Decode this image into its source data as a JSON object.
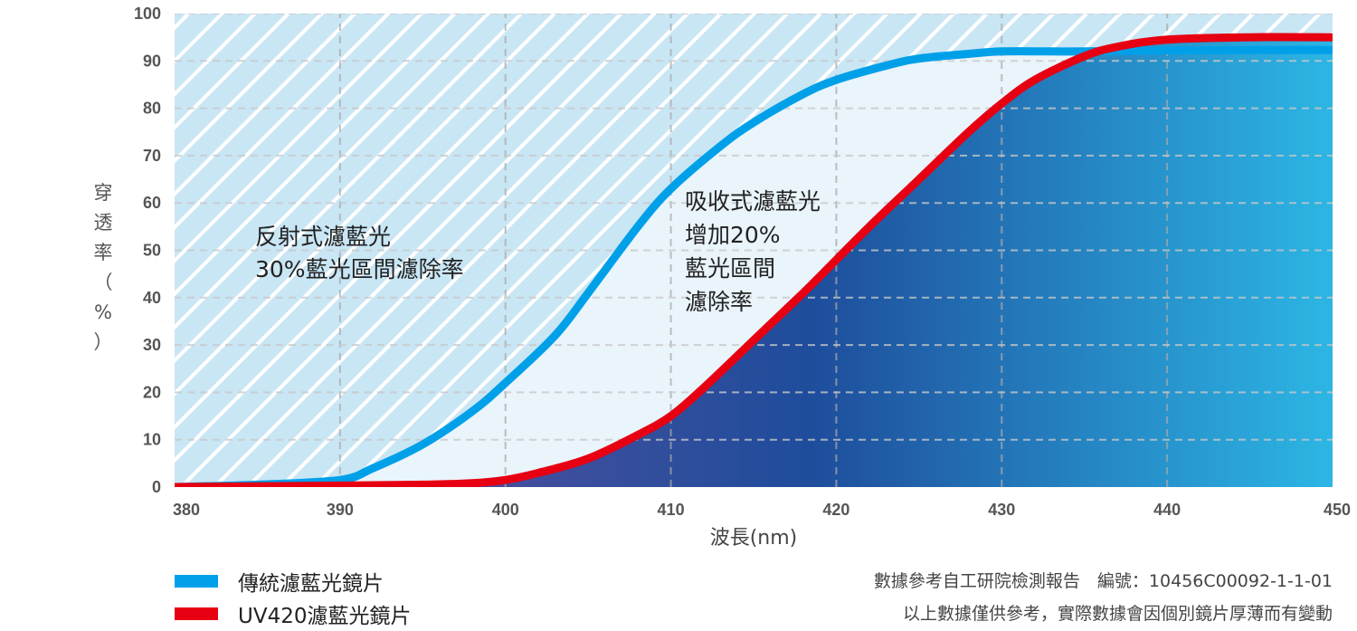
{
  "chart_data": {
    "type": "line",
    "xlabel": "波長(nm)",
    "ylabel": "穿透率（%）",
    "xlim": [
      380,
      450
    ],
    "ylim": [
      0,
      100
    ],
    "x_ticks": [
      380,
      390,
      400,
      410,
      420,
      430,
      440,
      450
    ],
    "y_ticks": [
      0,
      10,
      20,
      30,
      40,
      50,
      60,
      70,
      80,
      90,
      100
    ],
    "grid": true,
    "legend_position": "bottom-left",
    "series": [
      {
        "name": "傳統濾藍光鏡片",
        "color": "#00a0e9",
        "x": [
          380,
          385,
          390,
          392,
          395,
          398,
          400,
          403,
          405,
          408,
          410,
          413,
          415,
          418,
          420,
          423,
          425,
          428,
          430,
          433,
          435,
          440,
          445,
          450
        ],
        "y": [
          0,
          0.5,
          1.5,
          4,
          9,
          16,
          22,
          32,
          41,
          55,
          63,
          72,
          77,
          83,
          86,
          89,
          90.5,
          91.5,
          92,
          92,
          92,
          92.2,
          92.3,
          92.3
        ]
      },
      {
        "name": "UV420濾藍光鏡片",
        "color": "#e60012",
        "x": [
          380,
          390,
          395,
          398,
          400,
          402,
          405,
          408,
          410,
          412,
          415,
          418,
          420,
          422,
          425,
          428,
          430,
          432,
          435,
          437,
          440,
          445,
          450
        ],
        "y": [
          0,
          0.3,
          0.5,
          0.8,
          1.5,
          3,
          6,
          11,
          15,
          21,
          31,
          41,
          48,
          55,
          65,
          75,
          81,
          86,
          91,
          93,
          94.5,
          95,
          95
        ]
      }
    ],
    "annotations": [
      {
        "lines": [
          "反射式濾藍光",
          "30%藍光區間濾除率"
        ]
      },
      {
        "lines": [
          "吸收式濾藍光",
          "增加20%",
          "藍光區間",
          "濾除率"
        ]
      }
    ],
    "colors": {
      "hatch_background": "#c9e6f5",
      "hatch_stripe": "#ffffff",
      "between_fill": "#e9f4fb",
      "gradient_start": "#6b4f9e",
      "gradient_mid": "#1e4d9c",
      "gradient_end": "#2cb6e4"
    }
  },
  "legend": [
    {
      "label": "傳統濾藍光鏡片",
      "color": "#00a0e9"
    },
    {
      "label": "UV420濾藍光鏡片",
      "color": "#e60012"
    }
  ],
  "notes": {
    "line1": "數據參考自工研院檢測報告　編號：10456C00092-1-1-01",
    "line2": "以上數據僅供參考，實際數據會因個別鏡片厚薄而有變動"
  }
}
